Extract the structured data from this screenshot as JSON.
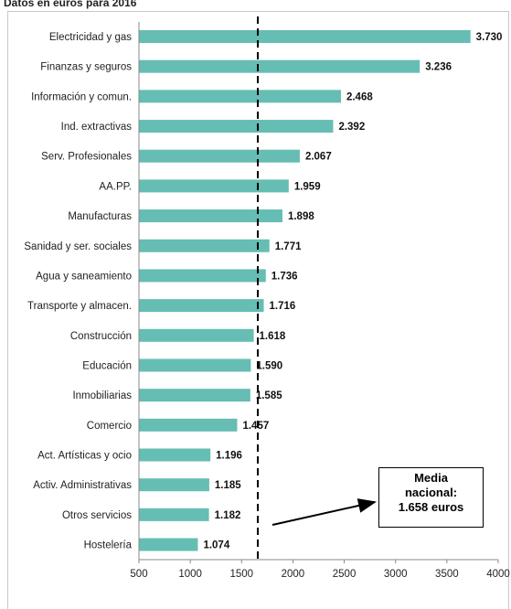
{
  "subtitle": "Datos en euros para 2016",
  "chart_data": {
    "type": "bar",
    "orientation": "horizontal",
    "title": "",
    "subtitle": "Datos en euros para 2016",
    "xlabel": "",
    "ylabel": "",
    "categories": [
      "Electricidad y gas",
      "Finanzas y seguros",
      "Información y comun.",
      "Ind. extractivas",
      "Serv. Profesionales",
      "AA.PP.",
      "Manufacturas",
      "Sanidad y ser. sociales",
      "Agua y saneamiento",
      "Transporte y almacen.",
      "Construcción",
      "Educación",
      "Inmobiliarias",
      "Comercio",
      "Act. Artísticas y ocio",
      "Activ. Administrativas",
      "Otros servicios",
      "Hostelería"
    ],
    "values": [
      3730,
      3236,
      2468,
      2392,
      2067,
      1959,
      1898,
      1771,
      1736,
      1716,
      1618,
      1590,
      1585,
      1457,
      1196,
      1185,
      1182,
      1074
    ],
    "value_labels": [
      "3.730",
      "3.236",
      "2.468",
      "2.392",
      "2.067",
      "1.959",
      "1.898",
      "1.771",
      "1.736",
      "1.716",
      "1.618",
      "1.590",
      "1.585",
      "1.457",
      "1.196",
      "1.185",
      "1.182",
      "1.074"
    ],
    "xlim": [
      500,
      4000
    ],
    "xticks": [
      500,
      1000,
      1500,
      2000,
      2500,
      3000,
      3500,
      4000
    ],
    "reference_line": {
      "value": 1658,
      "style": "dashed"
    },
    "bar_color": "#66bdb4",
    "grid": false,
    "legend": "none",
    "annotation": {
      "lines": [
        "Media",
        "nacional:",
        "1.658 euros"
      ]
    }
  }
}
